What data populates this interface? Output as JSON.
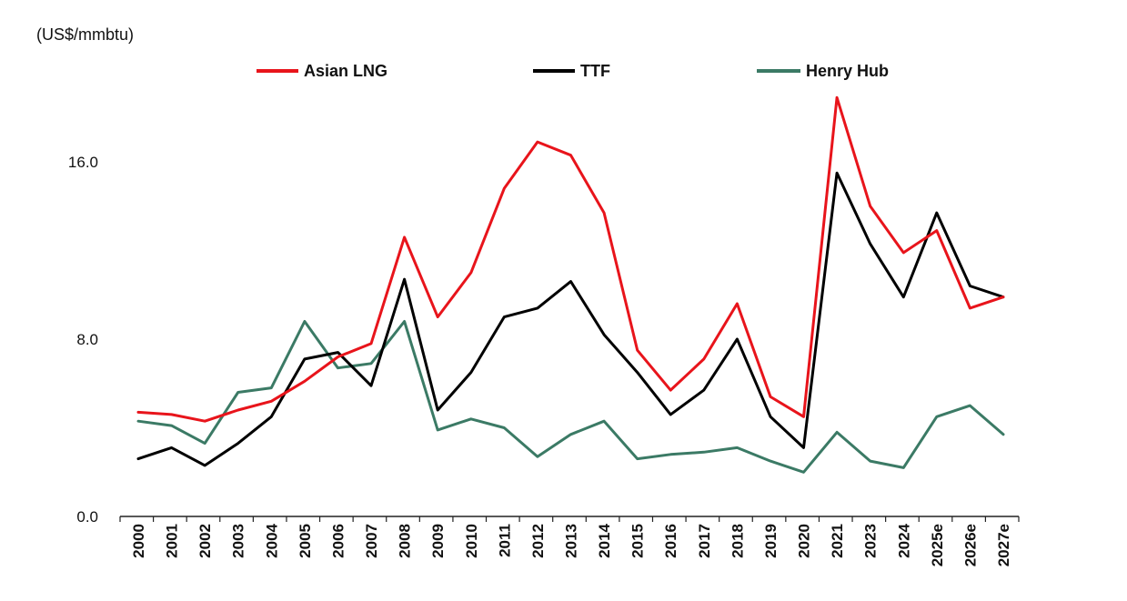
{
  "chart_data": {
    "type": "line",
    "unit_label": "(US$/mmbtu)",
    "categories": [
      "2000",
      "2001",
      "2002",
      "2003",
      "2004",
      "2005",
      "2006",
      "2007",
      "2008",
      "2009",
      "2010",
      "2011",
      "2012",
      "2013",
      "2014",
      "2015",
      "2016",
      "2017",
      "2018",
      "2019",
      "2020",
      "2021",
      "2023",
      "2024",
      "2025e",
      "2026e",
      "2027e"
    ],
    "series": [
      {
        "name": "Asian LNG",
        "color": "#e8141b",
        "values": [
          4.7,
          4.6,
          4.3,
          4.8,
          5.2,
          6.1,
          7.2,
          7.8,
          12.6,
          9.0,
          11.0,
          14.8,
          16.9,
          16.3,
          13.7,
          7.5,
          5.7,
          7.1,
          9.6,
          5.4,
          4.5,
          18.9,
          14.0,
          11.9,
          12.9,
          9.4,
          9.9
        ]
      },
      {
        "name": "TTF",
        "color": "#000000",
        "values": [
          2.6,
          3.1,
          2.3,
          3.3,
          4.5,
          7.1,
          7.4,
          5.9,
          10.7,
          4.8,
          6.5,
          9.0,
          9.4,
          10.6,
          8.2,
          6.5,
          4.6,
          5.7,
          8.0,
          4.5,
          3.1,
          15.5,
          12.3,
          9.9,
          13.7,
          10.4,
          9.9
        ]
      },
      {
        "name": "Henry Hub",
        "color": "#3b7a65",
        "values": [
          4.3,
          4.1,
          3.3,
          5.6,
          5.8,
          8.8,
          6.7,
          6.9,
          8.8,
          3.9,
          4.4,
          4.0,
          2.7,
          3.7,
          4.3,
          2.6,
          2.8,
          2.9,
          3.1,
          2.5,
          2.0,
          3.8,
          2.5,
          2.2,
          4.5,
          5.0,
          3.7
        ]
      }
    ],
    "y_ticks": [
      {
        "value": 0,
        "label": "0.0"
      },
      {
        "value": 8,
        "label": "8.0"
      },
      {
        "value": 16,
        "label": "16.0"
      }
    ],
    "ylim": [
      0,
      20.5
    ],
    "grid": false,
    "legend_position": "top"
  }
}
